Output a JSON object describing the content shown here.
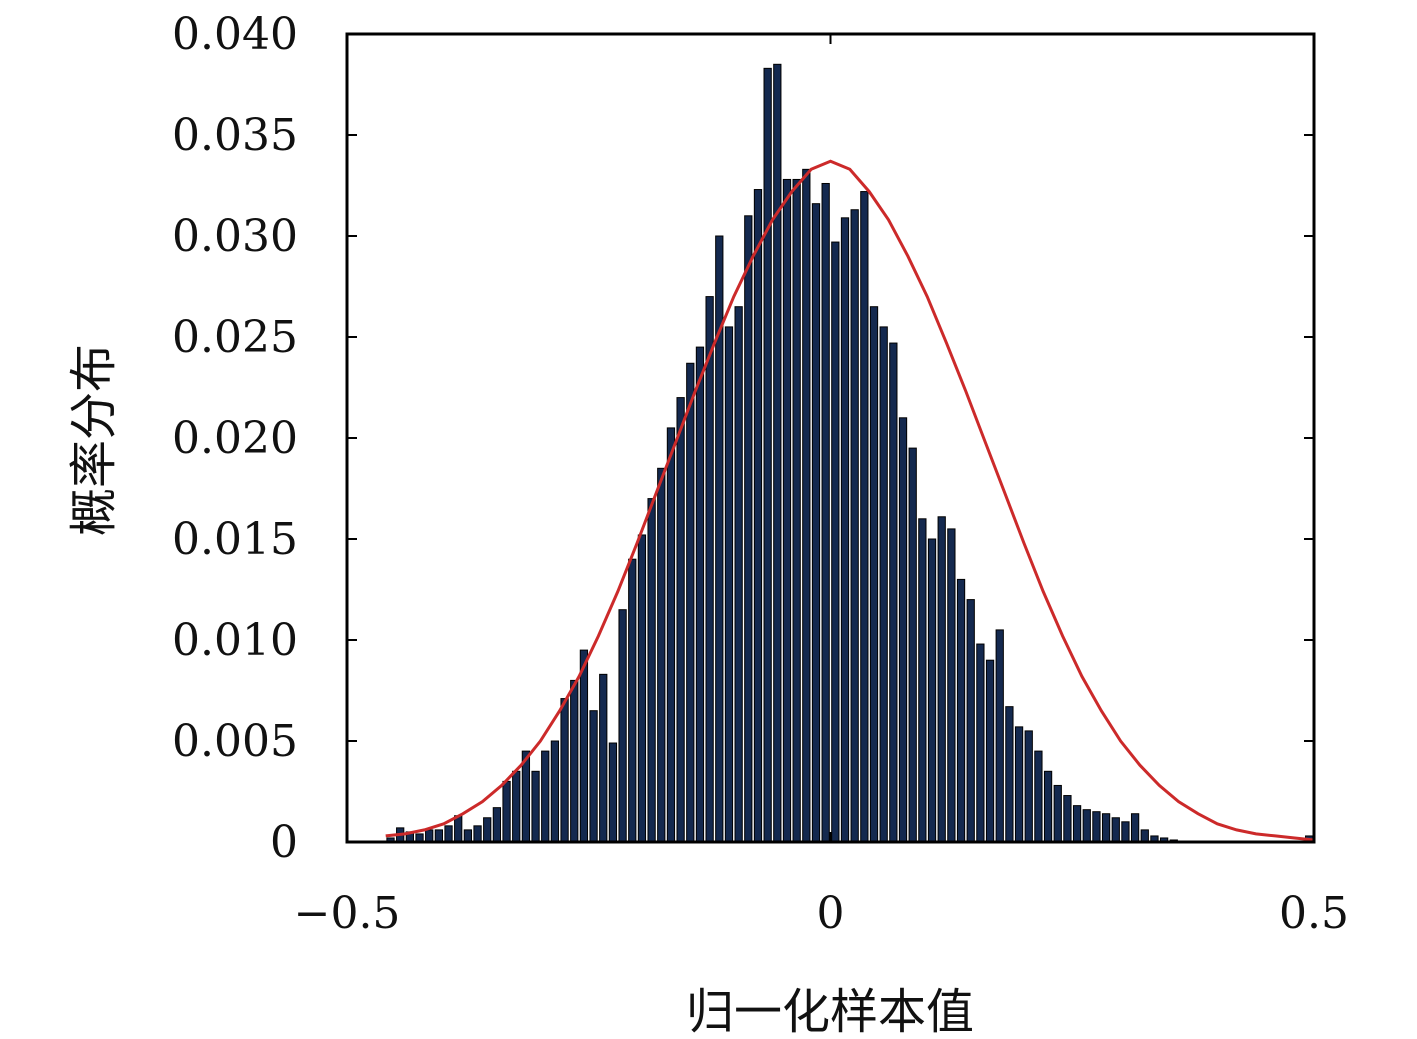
{
  "chart_data": {
    "type": "bar",
    "title": "",
    "xlabel": "归一化样本值",
    "ylabel": "概率分布",
    "xlim": [
      -0.5,
      0.5
    ],
    "ylim": [
      0,
      0.04
    ],
    "x_ticks": [
      -0.5,
      0,
      0.5
    ],
    "x_tick_labels": [
      "−0.5",
      "0",
      "0.5"
    ],
    "y_ticks": [
      0,
      0.005,
      0.01,
      0.015,
      0.02,
      0.025,
      0.03,
      0.035,
      0.04
    ],
    "y_tick_labels": [
      "0",
      "0.005",
      "0.010",
      "0.015",
      "0.020",
      "0.025",
      "0.030",
      "0.035",
      "0.040"
    ],
    "grid": false,
    "colors": {
      "bars": "#14294f",
      "bar_edge": "#000000",
      "fit_curve": "#cc2a2a",
      "axes": "#000000"
    },
    "series": [
      {
        "type": "histogram",
        "bin_width": 0.01,
        "x": [
          -0.455,
          -0.445,
          -0.435,
          -0.425,
          -0.415,
          -0.405,
          -0.395,
          -0.385,
          -0.375,
          -0.365,
          -0.355,
          -0.345,
          -0.335,
          -0.325,
          -0.315,
          -0.305,
          -0.295,
          -0.285,
          -0.275,
          -0.265,
          -0.255,
          -0.245,
          -0.235,
          -0.225,
          -0.215,
          -0.205,
          -0.195,
          -0.185,
          -0.175,
          -0.165,
          -0.155,
          -0.145,
          -0.135,
          -0.125,
          -0.115,
          -0.105,
          -0.095,
          -0.085,
          -0.075,
          -0.065,
          -0.055,
          -0.045,
          -0.035,
          -0.025,
          -0.015,
          -0.005,
          0.005,
          0.015,
          0.025,
          0.035,
          0.045,
          0.055,
          0.065,
          0.075,
          0.085,
          0.095,
          0.105,
          0.115,
          0.125,
          0.135,
          0.145,
          0.155,
          0.165,
          0.175,
          0.185,
          0.195,
          0.205,
          0.215,
          0.225,
          0.235,
          0.245,
          0.255,
          0.265,
          0.275,
          0.285,
          0.295,
          0.305,
          0.315,
          0.325,
          0.335,
          0.345,
          0.355,
          0.365,
          0.375,
          0.385,
          0.395,
          0.405,
          0.415,
          0.425,
          0.435,
          0.445,
          0.455,
          0.465,
          0.475,
          0.485,
          0.495
        ],
        "values": [
          0.0002,
          0.0007,
          0.0005,
          0.0004,
          0.0006,
          0.0006,
          0.0008,
          0.0013,
          0.0006,
          0.0008,
          0.0012,
          0.0017,
          0.003,
          0.0035,
          0.0045,
          0.0035,
          0.0045,
          0.005,
          0.0071,
          0.008,
          0.0095,
          0.0065,
          0.0083,
          0.0049,
          0.0115,
          0.014,
          0.0152,
          0.017,
          0.0185,
          0.0205,
          0.022,
          0.0237,
          0.0245,
          0.027,
          0.03,
          0.0255,
          0.0265,
          0.031,
          0.0323,
          0.0383,
          0.0385,
          0.0328,
          0.0328,
          0.0333,
          0.0316,
          0.0326,
          0.0297,
          0.0309,
          0.0313,
          0.0322,
          0.0265,
          0.0255,
          0.0247,
          0.021,
          0.0195,
          0.016,
          0.015,
          0.0161,
          0.0155,
          0.013,
          0.012,
          0.0098,
          0.009,
          0.0105,
          0.0067,
          0.0057,
          0.0055,
          0.0045,
          0.0035,
          0.0028,
          0.0023,
          0.0018,
          0.0016,
          0.0015,
          0.0014,
          0.0012,
          0.001,
          0.0014,
          0.0006,
          0.0003,
          0.0002,
          0.0001,
          0,
          0,
          0,
          0,
          0,
          0,
          0,
          0,
          0,
          0,
          0,
          0,
          0,
          0.0003
        ]
      },
      {
        "type": "line",
        "x": [
          -0.46,
          -0.44,
          -0.42,
          -0.4,
          -0.38,
          -0.36,
          -0.34,
          -0.32,
          -0.3,
          -0.28,
          -0.26,
          -0.24,
          -0.22,
          -0.2,
          -0.18,
          -0.16,
          -0.14,
          -0.12,
          -0.1,
          -0.08,
          -0.06,
          -0.04,
          -0.02,
          0,
          0.02,
          0.04,
          0.06,
          0.08,
          0.1,
          0.12,
          0.14,
          0.16,
          0.18,
          0.2,
          0.22,
          0.24,
          0.26,
          0.28,
          0.3,
          0.32,
          0.34,
          0.36,
          0.38,
          0.4,
          0.42,
          0.44,
          0.46,
          0.48,
          0.5
        ],
        "values": [
          0.0003,
          0.0004,
          0.0006,
          0.0009,
          0.0014,
          0.002,
          0.0028,
          0.0038,
          0.005,
          0.0065,
          0.0082,
          0.0102,
          0.0124,
          0.0148,
          0.0173,
          0.0198,
          0.0223,
          0.0247,
          0.027,
          0.029,
          0.0308,
          0.0322,
          0.0333,
          0.0337,
          0.0333,
          0.0322,
          0.0308,
          0.029,
          0.027,
          0.0247,
          0.0223,
          0.0198,
          0.0173,
          0.0148,
          0.0124,
          0.0102,
          0.0082,
          0.0065,
          0.005,
          0.0038,
          0.0028,
          0.002,
          0.0014,
          0.0009,
          0.0006,
          0.0004,
          0.0003,
          0.0002,
          0.0001
        ]
      }
    ]
  }
}
